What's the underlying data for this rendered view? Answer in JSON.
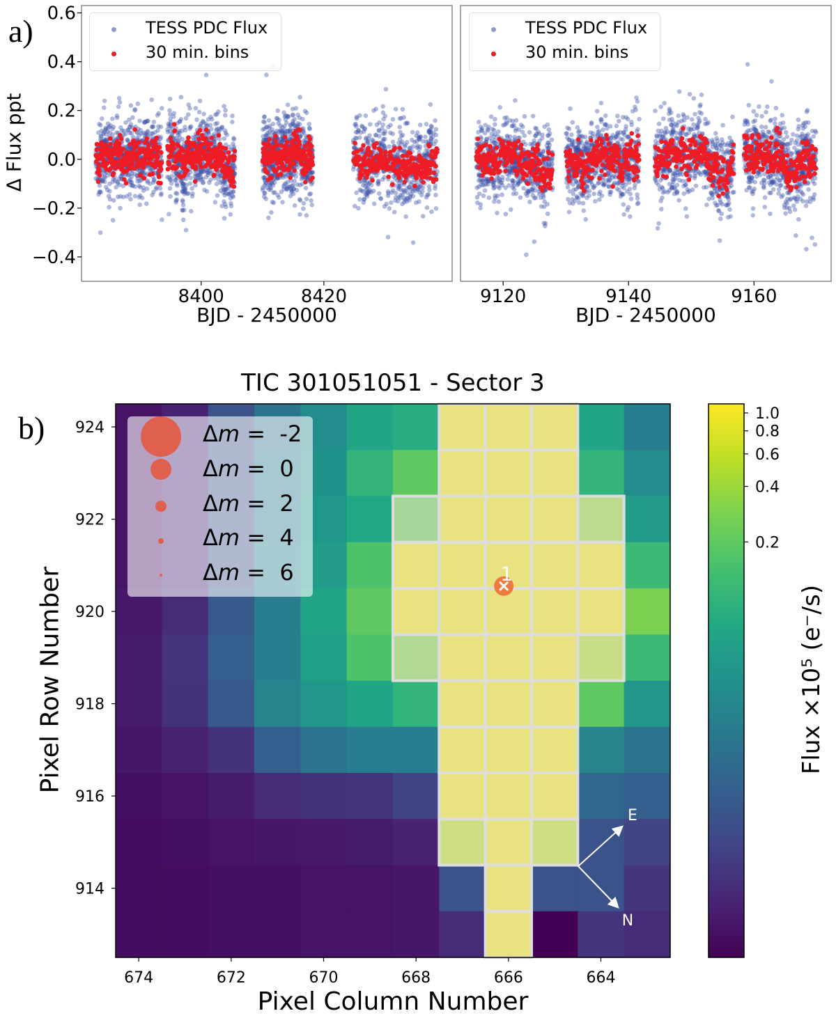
{
  "panel_labels": {
    "a": "a)",
    "b": "b)"
  },
  "chart_data": [
    {
      "type": "scatter",
      "panel": "a-left",
      "ylabel": "Δ Flux ppt",
      "xlabel": "BJD - 2450000",
      "xlim": [
        8380.5,
        8440.9
      ],
      "ylim": [
        -0.5,
        0.63
      ],
      "xticks": [
        8400,
        8420
      ],
      "yticks": [
        0.6,
        0.4,
        0.2,
        0.0,
        -0.2,
        -0.4
      ],
      "ytick_labels": [
        "0.6",
        "0.4",
        "0.2",
        "0.0",
        "−0.2",
        "−0.4"
      ],
      "legend": {
        "placement": "top-left",
        "entries": [
          "TESS PDC Flux",
          "30 min. bins"
        ]
      },
      "series": [
        {
          "name": "TESS PDC Flux",
          "color": "#3a4fa8",
          "scatter_ppt": 0.08
        },
        {
          "name": "30 min. bins",
          "color": "#ee1c25",
          "scatter_ppt": 0.035
        }
      ],
      "segments": [
        [
          8382.8,
          8393.6
        ],
        [
          8394.5,
          8405.5
        ],
        [
          8410.0,
          8418.2
        ],
        [
          8424.8,
          8438.5
        ]
      ]
    },
    {
      "type": "scatter",
      "panel": "a-right",
      "xlabel": "BJD - 2450000",
      "xlim": [
        9113.2,
        9172.3
      ],
      "ylim": [
        -0.5,
        0.63
      ],
      "xticks": [
        9120,
        9140,
        9160
      ],
      "legend": {
        "placement": "top-left",
        "entries": [
          "TESS PDC Flux",
          "30 min. bins"
        ]
      },
      "series": [
        {
          "name": "TESS PDC Flux",
          "color": "#3a4fa8",
          "scatter_ppt": 0.08
        },
        {
          "name": "30 min. bins",
          "color": "#ee1c25",
          "scatter_ppt": 0.035
        }
      ],
      "segments": [
        [
          9115.7,
          9127.9
        ],
        [
          9130.0,
          9141.7
        ],
        [
          9144.2,
          9156.8
        ],
        [
          9158.4,
          9169.9
        ]
      ]
    },
    {
      "type": "heatmap",
      "panel": "b",
      "title": "TIC 301051051 - Sector 3",
      "xlabel": "Pixel Column Number",
      "ylabel": "Pixel Row Number",
      "columns": [
        674,
        673,
        672,
        671,
        670,
        669,
        668,
        667,
        666,
        665,
        664,
        663
      ],
      "rows": [
        924,
        923,
        922,
        921,
        920,
        919,
        918,
        917,
        916,
        915,
        914,
        913
      ],
      "xticks": [
        674,
        672,
        670,
        668,
        666,
        664
      ],
      "yticks": [
        924,
        922,
        920,
        918,
        916,
        914
      ],
      "colormap": "viridis",
      "color_scale": "log",
      "clim": [
        0.00112,
        1.12
      ],
      "colorbar": {
        "label": "Flux ×10⁵ (e⁻/s)",
        "ticks": [
          1.0,
          0.8,
          0.6,
          0.4,
          0.2
        ],
        "tick_labels": [
          "1.0",
          "0.8",
          "0.6",
          "0.4",
          "0.2"
        ]
      },
      "values": [
        [
          0.0016,
          0.0022,
          0.0063,
          0.0155,
          0.031,
          0.062,
          0.081,
          1,
          1,
          1,
          0.062,
          0.021
        ],
        [
          0.0016,
          0.0022,
          0.0063,
          0.018,
          0.035,
          0.1,
          0.2,
          1,
          1,
          1,
          0.1,
          0.031
        ],
        [
          0.0016,
          0.0022,
          0.0063,
          0.018,
          0.041,
          0.071,
          0.25,
          1,
          1,
          1,
          0.4,
          0.05
        ],
        [
          0.0016,
          0.0022,
          0.0063,
          0.021,
          0.05,
          0.16,
          1,
          1,
          1,
          1,
          1,
          0.12
        ],
        [
          0.0018,
          0.0026,
          0.0078,
          0.021,
          0.062,
          0.2,
          1,
          1,
          1,
          1,
          1,
          0.28
        ],
        [
          0.0019,
          0.0032,
          0.0089,
          0.021,
          0.054,
          0.16,
          0.32,
          1,
          1,
          1,
          0.49,
          0.12
        ],
        [
          0.0019,
          0.003,
          0.0078,
          0.025,
          0.041,
          0.062,
          0.1,
          1,
          1,
          1,
          0.2,
          0.041
        ],
        [
          0.0017,
          0.0022,
          0.003,
          0.0089,
          0.016,
          0.021,
          0.021,
          1,
          1,
          1,
          0.025,
          0.016
        ],
        [
          0.0015,
          0.0016,
          0.0019,
          0.0026,
          0.003,
          0.0032,
          0.0045,
          1,
          1,
          1,
          0.011,
          0.0089
        ],
        [
          0.0014,
          0.0015,
          0.0016,
          0.0017,
          0.0018,
          0.0019,
          0.0022,
          0.56,
          1,
          0.56,
          0.0063,
          0.0045
        ],
        [
          0.0014,
          0.0014,
          0.0015,
          0.0015,
          0.0016,
          0.0016,
          0.0017,
          0.0063,
          1,
          0.0063,
          0.0063,
          0.0032
        ],
        [
          0.0014,
          0.0014,
          0.0015,
          0.0015,
          0.0016,
          0.0016,
          0.0017,
          0.0026,
          1,
          0.0011,
          0.0032,
          0.0026
        ]
      ],
      "aperture_mask": [
        [
          0,
          0,
          0,
          0,
          0,
          0,
          0,
          1,
          1,
          1,
          0,
          0
        ],
        [
          0,
          0,
          0,
          0,
          0,
          0,
          0,
          1,
          1,
          1,
          0,
          0
        ],
        [
          0,
          0,
          0,
          0,
          0,
          0,
          1,
          1,
          1,
          1,
          1,
          0
        ],
        [
          0,
          0,
          0,
          0,
          0,
          0,
          1,
          1,
          1,
          1,
          1,
          0
        ],
        [
          0,
          0,
          0,
          0,
          0,
          0,
          1,
          1,
          1,
          1,
          1,
          0
        ],
        [
          0,
          0,
          0,
          0,
          0,
          0,
          1,
          1,
          1,
          1,
          1,
          0
        ],
        [
          0,
          0,
          0,
          0,
          0,
          0,
          0,
          1,
          1,
          1,
          0,
          0
        ],
        [
          0,
          0,
          0,
          0,
          0,
          0,
          0,
          1,
          1,
          1,
          0,
          0
        ],
        [
          0,
          0,
          0,
          0,
          0,
          0,
          0,
          1,
          1,
          1,
          0,
          0
        ],
        [
          0,
          0,
          0,
          0,
          0,
          0,
          0,
          1,
          1,
          1,
          0,
          0
        ],
        [
          0,
          0,
          0,
          0,
          0,
          0,
          0,
          0,
          1,
          0,
          0,
          0
        ],
        [
          0,
          0,
          0,
          0,
          0,
          0,
          0,
          0,
          1,
          0,
          0,
          0
        ]
      ],
      "stars": [
        {
          "label": "1",
          "column": 666.1,
          "row": 920.55,
          "color": "#ee7a3f"
        }
      ],
      "compass": {
        "east": "E",
        "north": "N"
      },
      "magnitude_legend": {
        "placement": "top-left",
        "color": "#e0604f",
        "entries": [
          {
            "prefix": "Δ",
            "var": "m",
            "eq": " =  ",
            "value": "-2"
          },
          {
            "prefix": "Δ",
            "var": "m",
            "eq": " =  ",
            "value": "0"
          },
          {
            "prefix": "Δ",
            "var": "m",
            "eq": " =  ",
            "value": "2"
          },
          {
            "prefix": "Δ",
            "var": "m",
            "eq": " =  ",
            "value": "4"
          },
          {
            "prefix": "Δ",
            "var": "m",
            "eq": " =  ",
            "value": "6"
          }
        ]
      }
    }
  ]
}
